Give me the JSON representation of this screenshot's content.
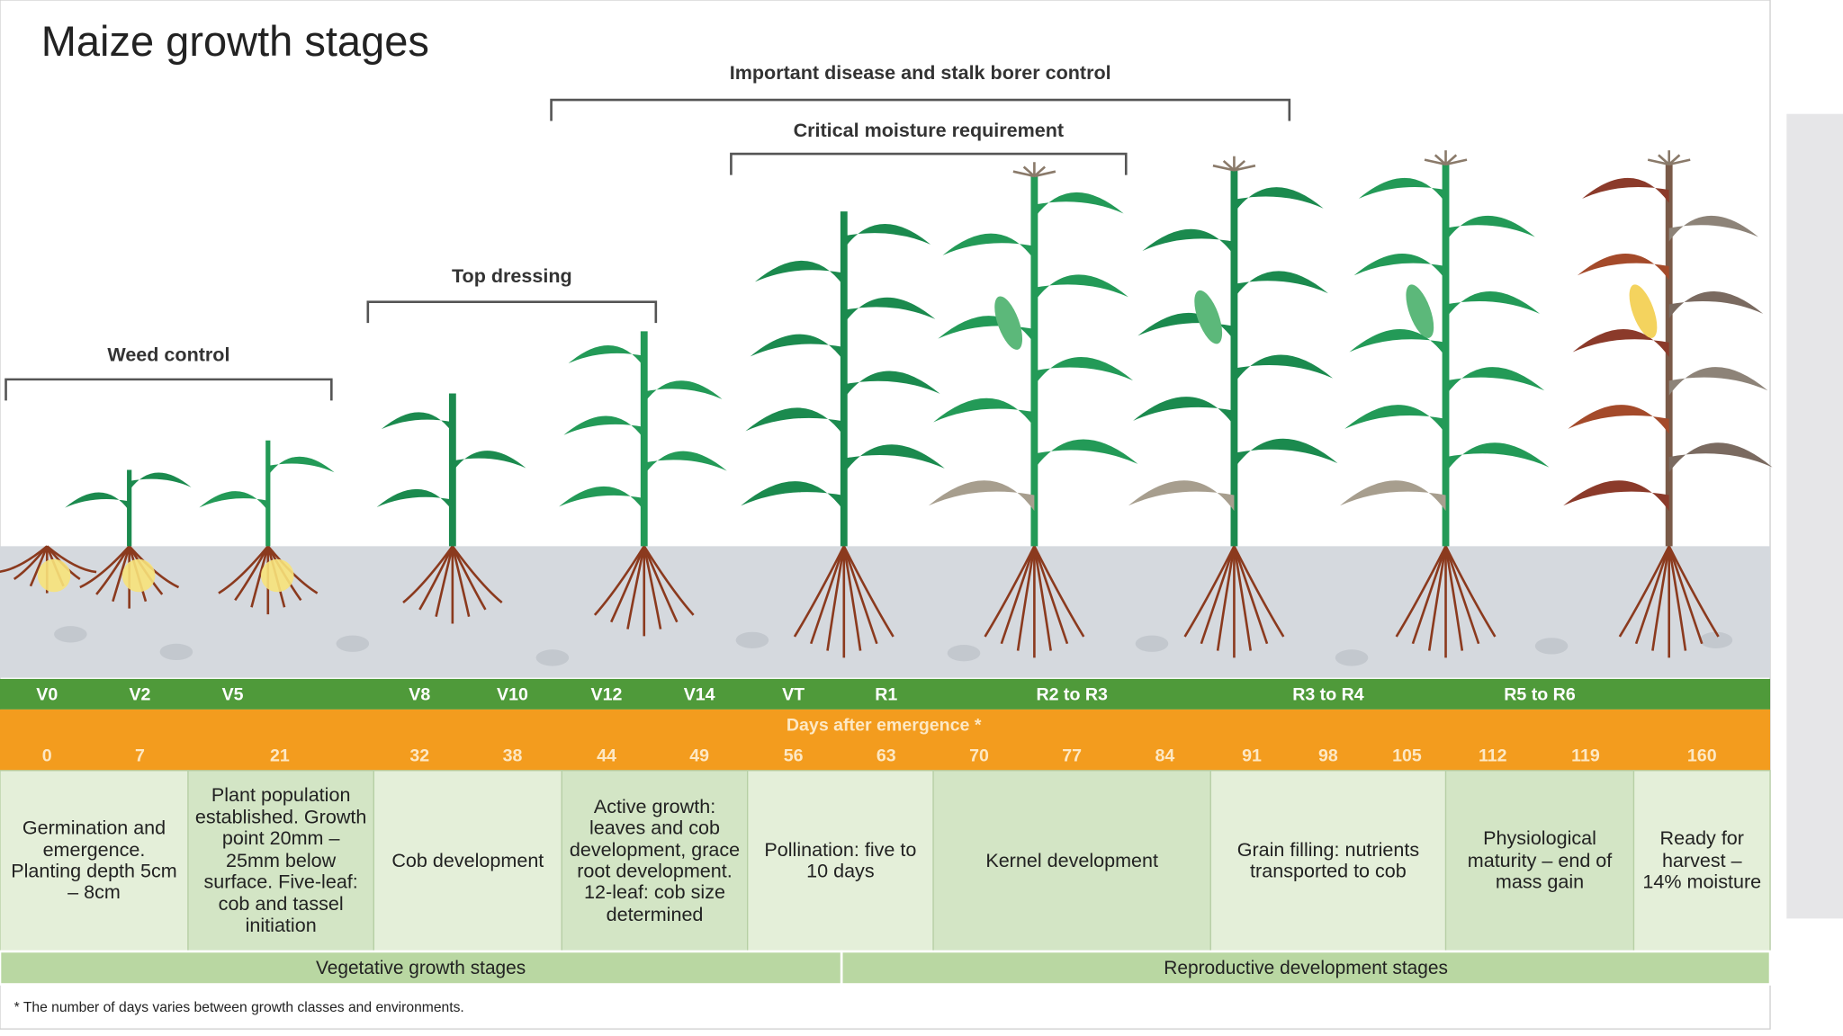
{
  "title": "Maize growth stages",
  "brackets": [
    {
      "label": "Weed control"
    },
    {
      "label": "Top dressing"
    },
    {
      "label": "Important disease and stalk borer control"
    },
    {
      "label": "Critical moisture requirement"
    }
  ],
  "stages": [
    "V0",
    "V2",
    "V5",
    "V8",
    "V10",
    "V12",
    "V14",
    "VT",
    "R1",
    "R2 to R3",
    "R3 to R4",
    "R5 to R6"
  ],
  "days_header": "Days after emergence *",
  "days": [
    0,
    7,
    21,
    32,
    38,
    44,
    49,
    56,
    63,
    70,
    77,
    84,
    91,
    98,
    105,
    112,
    119,
    160
  ],
  "descriptions": [
    "Germination and emergence. Planting depth 5cm – 8cm",
    "Plant population established. Growth point 20mm – 25mm below surface. Five-leaf: cob and tassel initiation",
    "Cob development",
    "Active growth: leaves and cob development, grace root development. 12-leaf: cob size determined",
    "Pollination: five to 10 days",
    "Kernel development",
    "Grain filling: nutrients transported to cob",
    "Physiological maturity – end of mass gain",
    "Ready for harvest – 14% moisture"
  ],
  "phases": [
    "Vegetative growth stages",
    "Reproductive development stages"
  ],
  "footnote": "* The number of days varies between growth classes and environments."
}
